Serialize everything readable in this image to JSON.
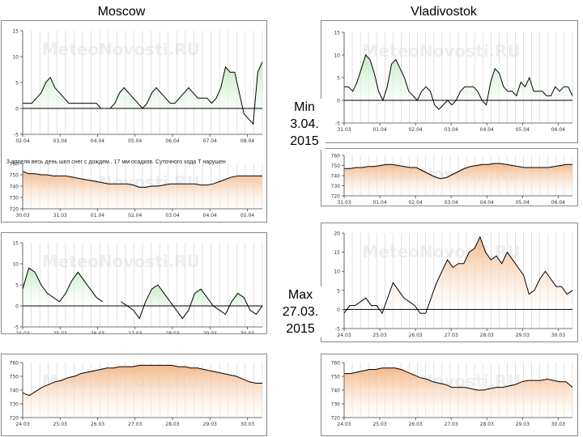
{
  "titles": {
    "left": "Moscow",
    "right": "Vladivostok"
  },
  "min_label": {
    "title": "Min",
    "date": "3.04.",
    "year": "2015"
  },
  "max_label": {
    "title": "Max",
    "date": "27.03.",
    "year": "2015"
  },
  "watermark": "MeteoNovosti.RU",
  "note": "3 апреля весь день шел снег с дождем.. 17 мм осадков. Суточного хода Т нарушен",
  "colors": {
    "temp": "#2e8b2e",
    "temp_fill_green": "#bfe9bf",
    "temp_fill_orange": "#f6c58e",
    "press_fill": "#f3b584",
    "line": "#000000",
    "grid": "#cccccc"
  },
  "chart_data": [
    {
      "id": "moscow-min-temp",
      "type": "area",
      "fill": "green",
      "ylim": [
        -5,
        15
      ],
      "yticks": [
        -5,
        0,
        5,
        10,
        15
      ],
      "xticks": [
        "02.04",
        "03.04",
        "04.04",
        "05.04",
        "06.04",
        "07.04",
        "08.04"
      ],
      "values": [
        1,
        1,
        1,
        2,
        3,
        5,
        6,
        4,
        3,
        2,
        1,
        1,
        1,
        1,
        1,
        1,
        1,
        0,
        0,
        0,
        1,
        3,
        4,
        3,
        2,
        1,
        0,
        1,
        3,
        4,
        3,
        2,
        1,
        1,
        2,
        3,
        4,
        3,
        2,
        2,
        2,
        1,
        2,
        4,
        8,
        7,
        7,
        3,
        -1,
        -2,
        -3,
        7,
        9
      ]
    },
    {
      "id": "moscow-min-press",
      "type": "area",
      "fill": "orange",
      "ylim": [
        720,
        760
      ],
      "yticks": [
        720,
        730,
        740,
        750,
        760
      ],
      "xticks": [
        "30.03",
        "31.03",
        "01.04",
        "02.04",
        "03.04",
        "04.04",
        "05.04"
      ],
      "values": [
        753,
        751,
        751,
        750,
        750,
        749,
        749,
        749,
        748,
        747,
        746,
        745,
        744,
        743,
        742,
        742,
        742,
        742,
        741,
        739,
        739,
        740,
        740,
        741,
        742,
        742,
        742,
        742,
        742,
        741,
        741,
        742,
        744,
        746,
        748,
        749,
        749,
        749,
        749,
        749
      ]
    },
    {
      "id": "moscow-max-temp",
      "type": "area",
      "fill": "green",
      "ylim": [
        -5,
        15
      ],
      "yticks": [
        -5,
        0,
        5,
        10,
        15
      ],
      "xticks": [
        "24.03",
        "25.03",
        "26.03",
        "27.03",
        "28.03",
        "29.03",
        "30.03"
      ],
      "values": [
        4,
        9,
        8,
        5,
        3,
        2,
        1,
        3,
        6,
        8,
        6,
        4,
        2,
        1,
        null,
        null,
        1,
        0,
        -1,
        -3,
        1,
        4,
        5,
        3,
        1,
        -1,
        -3,
        -1,
        3,
        4,
        2,
        0,
        -1,
        -2,
        1,
        3,
        2,
        -1,
        -2,
        0
      ]
    },
    {
      "id": "moscow-max-press",
      "type": "area",
      "fill": "orange",
      "ylim": [
        720,
        760
      ],
      "yticks": [
        720,
        730,
        740,
        750,
        760
      ],
      "xticks": [
        "24.03",
        "25.03",
        "26.03",
        "27.03",
        "28.03",
        "29.03",
        "30.03"
      ],
      "values": [
        738,
        736,
        739,
        742,
        744,
        746,
        747,
        749,
        750,
        752,
        753,
        754,
        755,
        756,
        756,
        757,
        757,
        757,
        758,
        758,
        758,
        758,
        758,
        758,
        757,
        757,
        756,
        756,
        755,
        754,
        753,
        752,
        751,
        750,
        748,
        746,
        745,
        745
      ]
    },
    {
      "id": "vladivostok-min-temp",
      "type": "area",
      "fill": "green",
      "ylim": [
        -5,
        15
      ],
      "yticks": [
        -5,
        0,
        5,
        10,
        15
      ],
      "xticks": [
        "31.03",
        "01.04",
        "02.04",
        "03.04",
        "04.04",
        "05.04",
        "06.04"
      ],
      "values": [
        3,
        3,
        2,
        4,
        7,
        10,
        9,
        6,
        2,
        0,
        3,
        8,
        9,
        7,
        5,
        2,
        1,
        0,
        2,
        3,
        2,
        -1,
        -2,
        -1,
        0,
        -1,
        0,
        2,
        3,
        3,
        3,
        2,
        0,
        -1,
        4,
        7,
        6,
        3,
        2,
        2,
        1,
        4,
        3,
        5,
        2,
        2,
        2,
        1,
        1,
        3,
        2,
        3,
        3,
        1
      ]
    },
    {
      "id": "vladivostok-min-press",
      "type": "area",
      "fill": "orange",
      "ylim": [
        720,
        760
      ],
      "yticks": [
        720,
        730,
        740,
        750,
        760
      ],
      "xticks": [
        "31.03",
        "01.04",
        "02.04",
        "03.04",
        "04.04",
        "05.04",
        "06.04"
      ],
      "values": [
        747,
        747,
        748,
        748,
        749,
        749,
        750,
        751,
        751,
        750,
        749,
        748,
        748,
        745,
        742,
        739,
        737,
        738,
        741,
        744,
        747,
        749,
        750,
        751,
        751,
        752,
        752,
        751,
        750,
        749,
        748,
        748,
        748,
        748,
        748,
        749,
        750,
        751,
        751
      ]
    },
    {
      "id": "vladivostok-max-temp",
      "type": "area",
      "fill": "orange",
      "ylim": [
        -5,
        20
      ],
      "yticks": [
        -5,
        0,
        5,
        10,
        15,
        20
      ],
      "xticks": [
        "24.03",
        "25.03",
        "26.03",
        "27.03",
        "28.03",
        "29.03",
        "30.03"
      ],
      "values": [
        -1,
        1,
        1,
        2,
        3,
        1,
        1,
        -1,
        3,
        7,
        5,
        3,
        2,
        1,
        -1,
        -1,
        3,
        7,
        10,
        13,
        11,
        12,
        12,
        15,
        16,
        19,
        15,
        13,
        14,
        12,
        15,
        13,
        11,
        9,
        4,
        5,
        8,
        10,
        8,
        6,
        6,
        4,
        5
      ]
    },
    {
      "id": "vladivostok-max-press",
      "type": "area",
      "fill": "orange",
      "ylim": [
        720,
        760
      ],
      "yticks": [
        720,
        730,
        740,
        750,
        760
      ],
      "xticks": [
        "24.03",
        "25.03",
        "26.03",
        "27.03",
        "28.03",
        "29.03",
        "30.03"
      ],
      "values": [
        752,
        752,
        753,
        754,
        755,
        755,
        756,
        756,
        756,
        755,
        753,
        751,
        749,
        748,
        746,
        745,
        744,
        742,
        742,
        742,
        741,
        740,
        740,
        741,
        742,
        742,
        743,
        744,
        746,
        747,
        747,
        747,
        748,
        747,
        746,
        746,
        742
      ]
    }
  ]
}
